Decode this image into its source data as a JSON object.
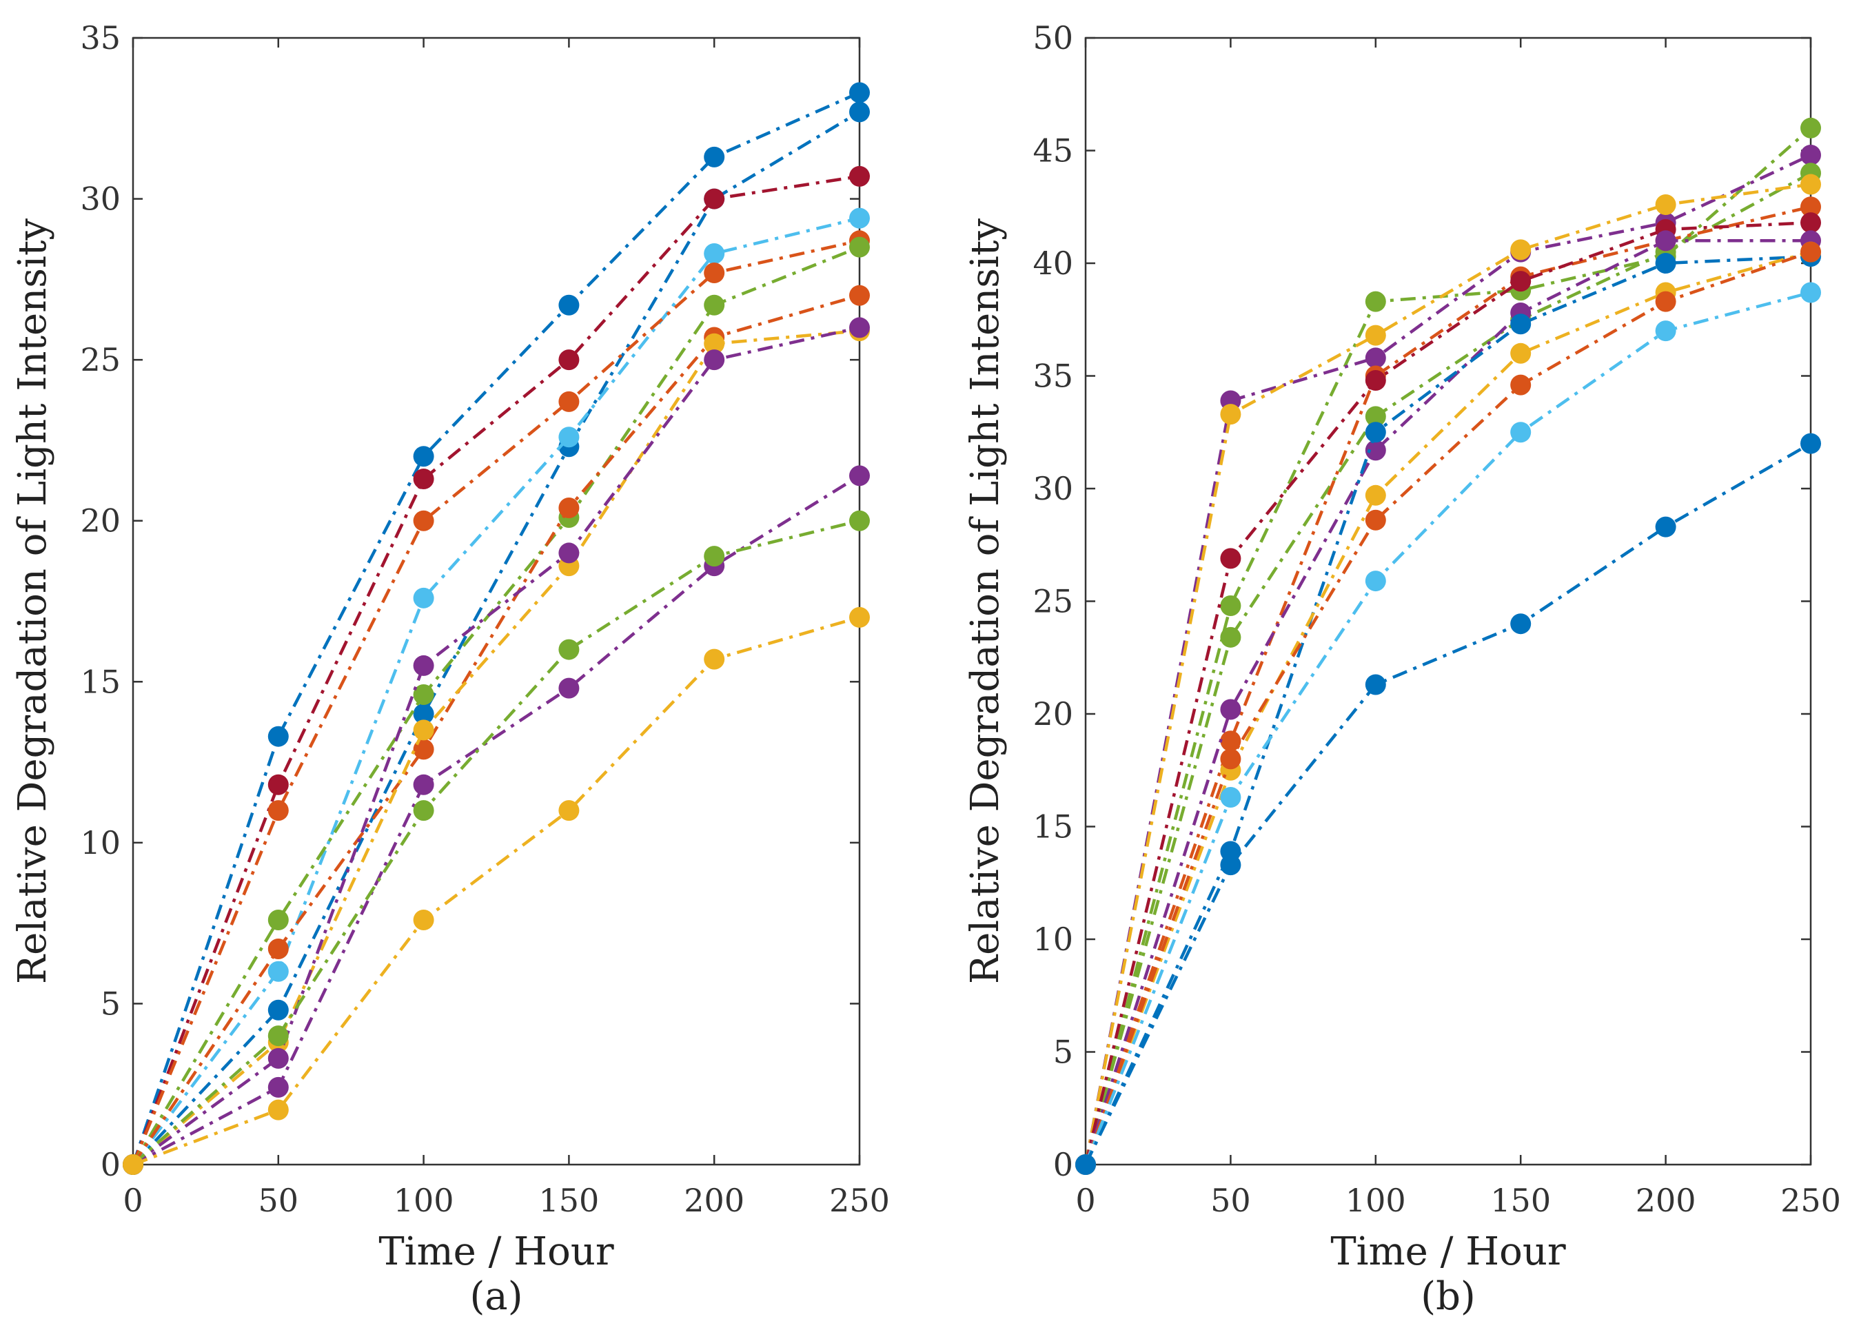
{
  "chart_data": [
    {
      "type": "line",
      "caption": "(a)",
      "xlabel": "Time / Hour",
      "ylabel": "Relative Degradation of Light Intensity",
      "xlim": [
        0,
        250
      ],
      "ylim": [
        0,
        35
      ],
      "xticks": [
        0,
        50,
        100,
        150,
        200,
        250
      ],
      "yticks": [
        0,
        5,
        10,
        15,
        20,
        25,
        30,
        35
      ],
      "x": [
        0,
        50,
        100,
        150,
        200,
        250
      ],
      "grid": false,
      "series": [
        {
          "name": "series-1",
          "color": "#0072BD",
          "values": [
            0,
            13.3,
            22.0,
            26.7,
            31.3,
            33.3
          ]
        },
        {
          "name": "series-2",
          "color": "#0072BD",
          "values": [
            0,
            4.8,
            14.0,
            22.3,
            30.0,
            32.7
          ]
        },
        {
          "name": "series-3",
          "color": "#A2142F",
          "values": [
            0,
            11.8,
            21.3,
            25.0,
            30.0,
            30.7
          ]
        },
        {
          "name": "series-4",
          "color": "#4DBEEE",
          "values": [
            0,
            6.0,
            17.6,
            22.6,
            28.3,
            29.4
          ]
        },
        {
          "name": "series-5",
          "color": "#D95319",
          "values": [
            0,
            11.0,
            20.0,
            23.7,
            27.7,
            28.7
          ]
        },
        {
          "name": "series-6",
          "color": "#77AC30",
          "values": [
            0,
            7.6,
            14.6,
            20.1,
            26.7,
            28.5
          ]
        },
        {
          "name": "series-7",
          "color": "#D95319",
          "values": [
            0,
            6.7,
            12.9,
            20.4,
            25.7,
            27.0
          ]
        },
        {
          "name": "series-8",
          "color": "#EDB120",
          "values": [
            0,
            3.8,
            13.5,
            18.6,
            25.5,
            25.9
          ]
        },
        {
          "name": "series-9",
          "color": "#7E2F8E",
          "values": [
            0,
            3.3,
            15.5,
            19.0,
            25.0,
            26.0
          ]
        },
        {
          "name": "series-10",
          "color": "#7E2F8E",
          "values": [
            0,
            2.4,
            11.8,
            14.8,
            18.6,
            21.4
          ]
        },
        {
          "name": "series-11",
          "color": "#77AC30",
          "values": [
            0,
            4.0,
            11.0,
            16.0,
            18.9,
            20.0
          ]
        },
        {
          "name": "series-12",
          "color": "#EDB120",
          "values": [
            0,
            1.7,
            7.6,
            11.0,
            15.7,
            17.0
          ]
        }
      ]
    },
    {
      "type": "line",
      "caption": "(b)",
      "xlabel": "Time / Hour",
      "ylabel": "Relative Degradation of Light Intensity",
      "xlim": [
        0,
        250
      ],
      "ylim": [
        0,
        50
      ],
      "xticks": [
        0,
        50,
        100,
        150,
        200,
        250
      ],
      "yticks": [
        0,
        5,
        10,
        15,
        20,
        25,
        30,
        35,
        40,
        45,
        50
      ],
      "x": [
        0,
        50,
        100,
        150,
        200,
        250
      ],
      "grid": false,
      "series": [
        {
          "name": "series-1",
          "color": "#77AC30",
          "values": [
            0,
            24.8,
            38.3,
            38.8,
            40.3,
            46.0
          ]
        },
        {
          "name": "series-2",
          "color": "#7E2F8E",
          "values": [
            0,
            33.9,
            35.8,
            40.5,
            41.8,
            44.8
          ]
        },
        {
          "name": "series-3",
          "color": "#77AC30",
          "values": [
            0,
            23.4,
            33.2,
            37.5,
            40.5,
            44.0
          ]
        },
        {
          "name": "series-4",
          "color": "#EDB120",
          "values": [
            0,
            33.3,
            36.8,
            40.6,
            42.6,
            43.5
          ]
        },
        {
          "name": "series-5",
          "color": "#D95319",
          "values": [
            0,
            18.8,
            35.0,
            39.4,
            41.0,
            42.5
          ]
        },
        {
          "name": "series-6",
          "color": "#A2142F",
          "values": [
            0,
            26.9,
            34.8,
            39.2,
            41.5,
            41.8
          ]
        },
        {
          "name": "series-7",
          "color": "#7E2F8E",
          "values": [
            0,
            20.2,
            31.7,
            37.8,
            41.0,
            41.0
          ]
        },
        {
          "name": "series-8",
          "color": "#0072BD",
          "values": [
            0,
            13.9,
            32.5,
            37.3,
            40.0,
            40.3
          ]
        },
        {
          "name": "series-9",
          "color": "#EDB120",
          "values": [
            0,
            17.5,
            29.7,
            36.0,
            38.7,
            40.5
          ]
        },
        {
          "name": "series-10",
          "color": "#D95319",
          "values": [
            0,
            18.0,
            28.6,
            34.6,
            38.3,
            40.5
          ]
        },
        {
          "name": "series-11",
          "color": "#4DBEEE",
          "values": [
            0,
            16.3,
            25.9,
            32.5,
            37.0,
            38.7
          ]
        },
        {
          "name": "series-12",
          "color": "#0072BD",
          "values": [
            0,
            13.3,
            21.3,
            24.0,
            28.3,
            32.0
          ]
        }
      ]
    }
  ]
}
